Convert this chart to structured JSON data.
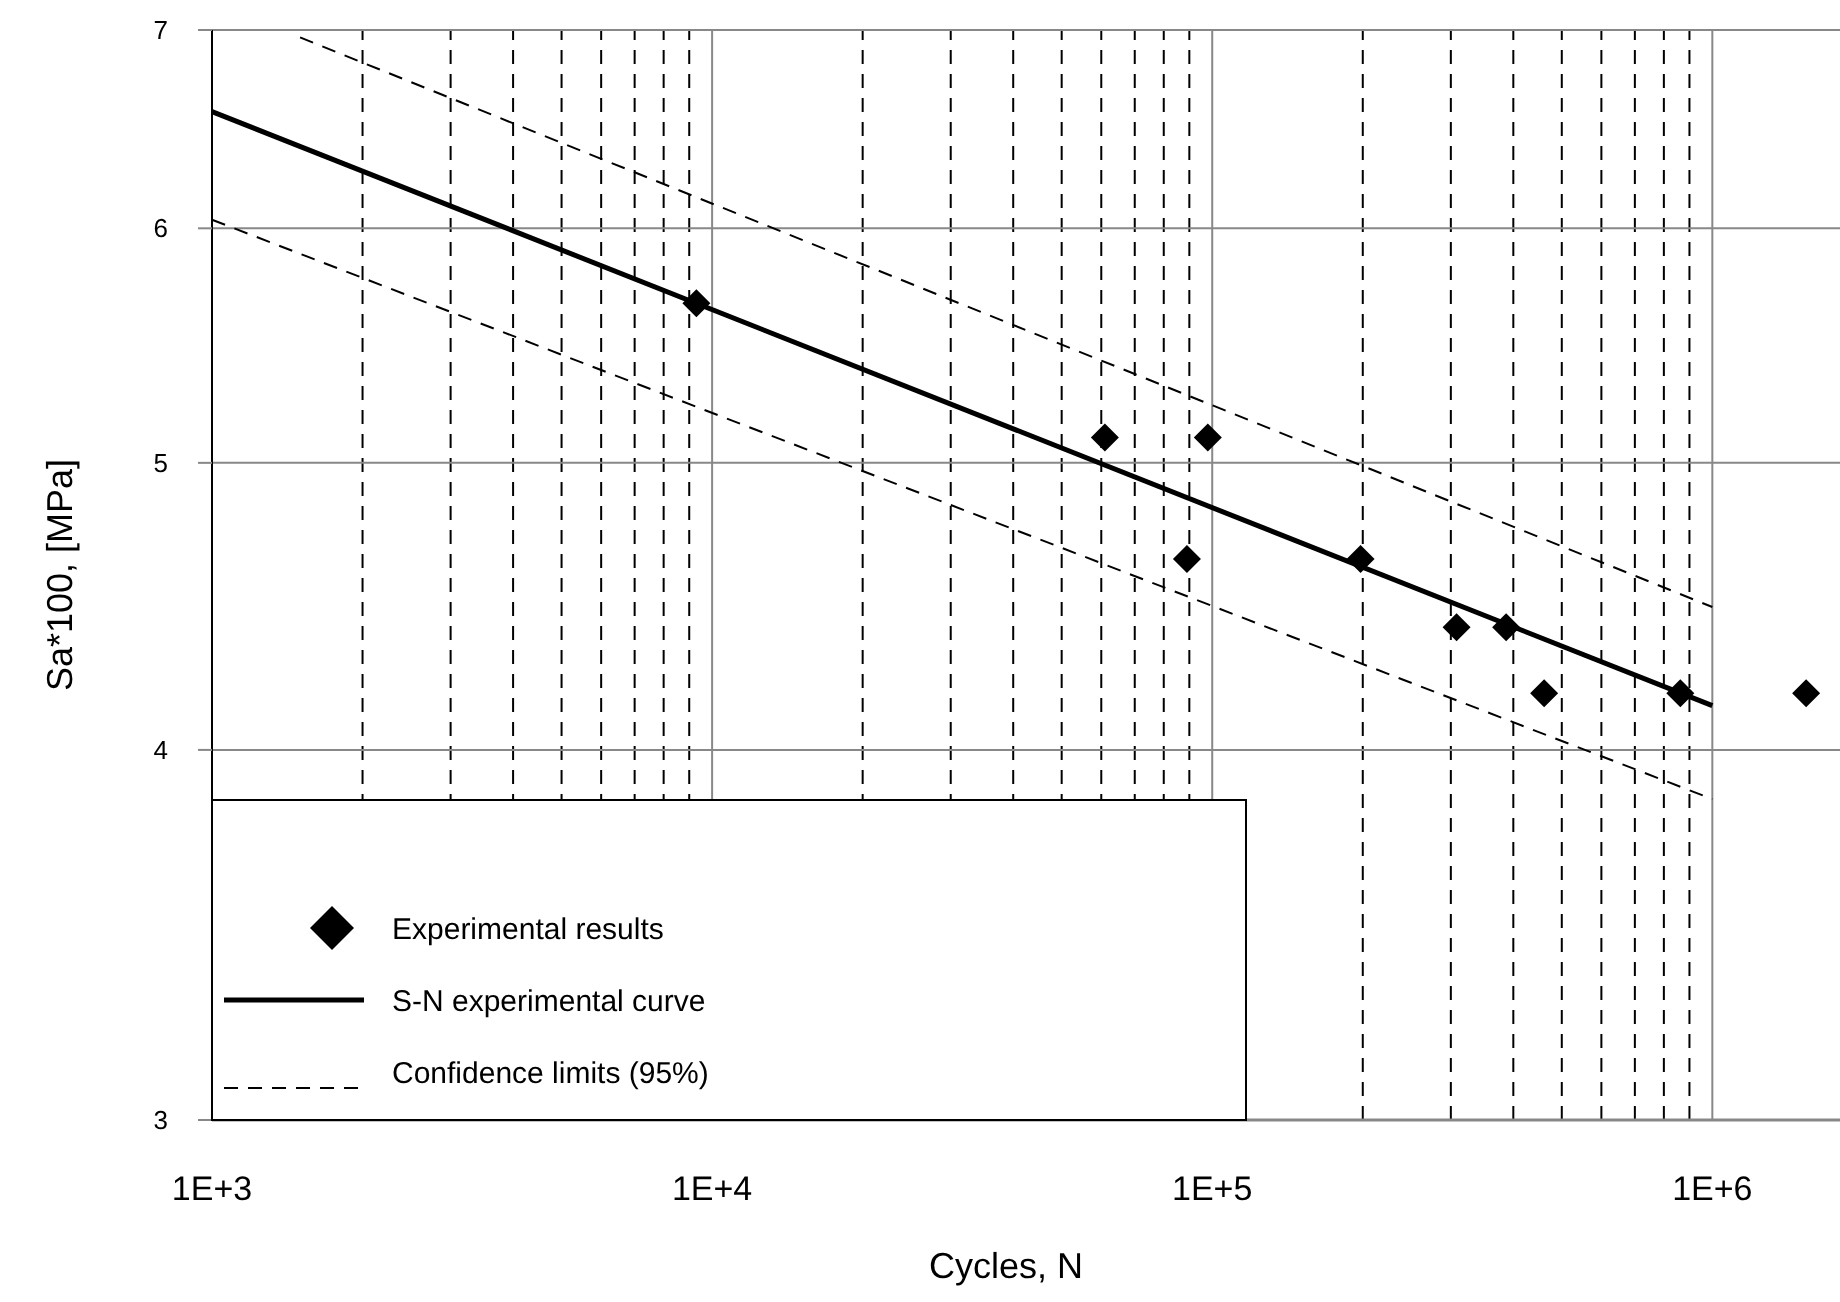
{
  "chart_data": {
    "type": "scatter",
    "xlabel": "Cycles, N",
    "ylabel": "Sa*100, [MPa]",
    "log": "xy",
    "xlim": [
      1000,
      1800000
    ],
    "xticks": [
      {
        "value": 1000,
        "label": "1E+3"
      },
      {
        "value": 10000,
        "label": "1E+4"
      },
      {
        "value": 100000,
        "label": "1E+5"
      },
      {
        "value": 1000000,
        "label": "1E+6"
      }
    ],
    "ylim": [
      3,
      7
    ],
    "yticks": [
      3,
      4,
      5,
      6,
      7
    ],
    "grid": true,
    "legend": "bottom left",
    "series": [
      {
        "name": "Experimental results",
        "marker": "diamond",
        "color": "#000000",
        "x": [
          9300,
          61000,
          98000,
          89000,
          198000,
          308000,
          387000,
          461000,
          863000,
          1540000
        ],
        "values": [
          5.66,
          5.1,
          5.1,
          4.64,
          4.64,
          4.4,
          4.4,
          4.18,
          4.18,
          4.18
        ]
      },
      {
        "name": "S-N experimental curve",
        "type": "line",
        "line_style": "solid",
        "color": "#000000",
        "x": [
          1000,
          1000000
        ],
        "values": [
          6.57,
          4.14
        ]
      },
      {
        "name": "Confidence limits (95%)",
        "type": "line",
        "line_style": "dashed",
        "color": "#000000",
        "x": [
          1500,
          1000000
        ],
        "values": [
          6.96,
          4.47
        ]
      },
      {
        "type": "line",
        "line_style": "dashed",
        "color": "#000000",
        "x": [
          1000,
          1000000
        ],
        "values": [
          6.04,
          3.85
        ]
      }
    ]
  }
}
